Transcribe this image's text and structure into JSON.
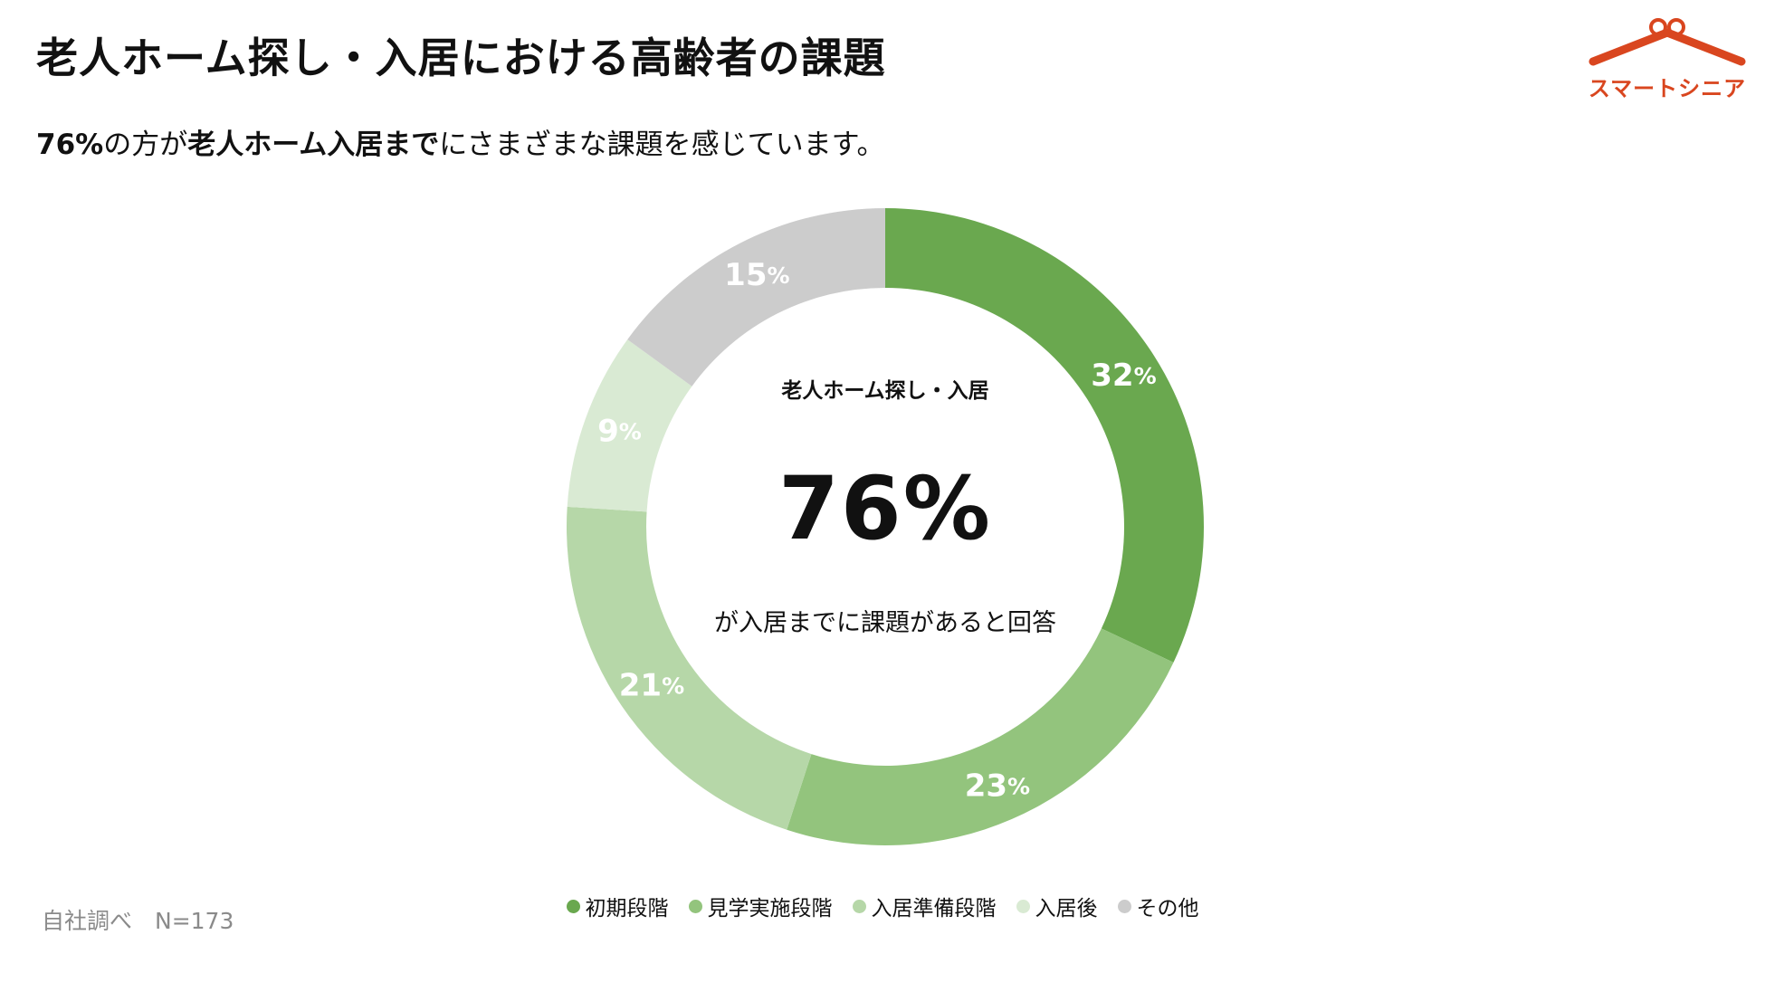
{
  "header": {
    "title": "老人ホーム探し・入居における高齢者の課題",
    "subtitle": {
      "part1": "76%",
      "part2": "の方が",
      "part3": "老人ホーム入居まで",
      "part4": "にさまざまな課題を感じています。"
    }
  },
  "logo": {
    "text": "スマートシニア",
    "color": "#d9461f"
  },
  "chart_data": {
    "type": "pie",
    "donut": true,
    "categories": [
      "初期段階",
      "見学実施段階",
      "入居準備段階",
      "入居後",
      "その他"
    ],
    "values": [
      32,
      23,
      21,
      9,
      15
    ],
    "value_suffix": "%",
    "colors": [
      "#6aa84f",
      "#93c47d",
      "#b6d7a8",
      "#d9ead3",
      "#cccccc"
    ],
    "center": {
      "label": "老人ホーム探し・入居",
      "value": "76%",
      "caption": "が入居までに課題があると回答"
    },
    "legend_position": "bottom"
  },
  "footer": {
    "source": "自社調べ　N=173"
  }
}
